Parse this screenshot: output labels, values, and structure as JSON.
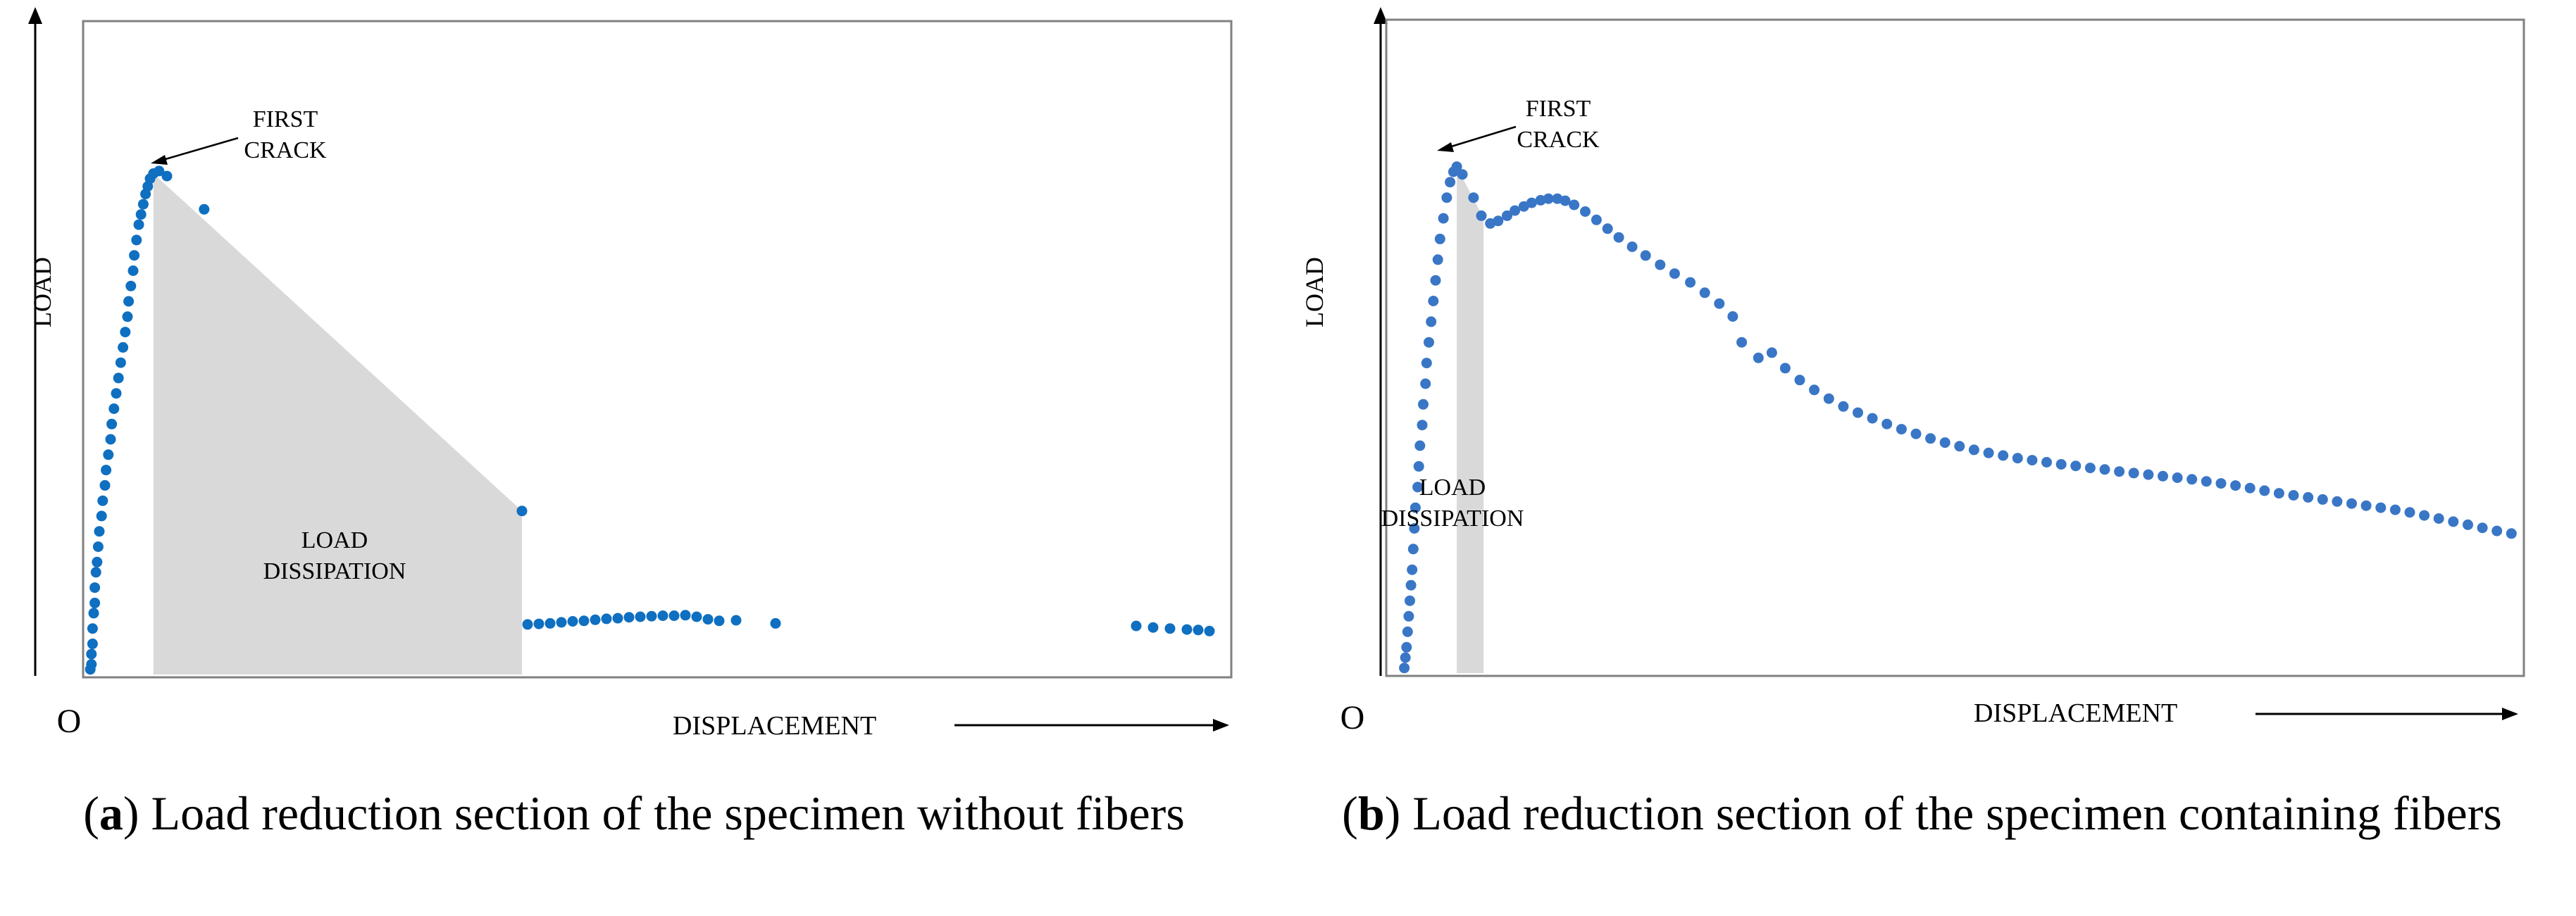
{
  "chart_data": [
    {
      "type": "scatter",
      "panel_label": "a",
      "caption": "Load reduction section of the specimen without fibers",
      "xlabel": "DISPLACEMENT",
      "ylabel": "LOAD",
      "origin_label": "O",
      "xlim": [
        0,
        100
      ],
      "ylim": [
        0,
        100
      ],
      "point_color": "#0f6fc0",
      "shade_color": "#d9d9d9",
      "annotations": {
        "first_crack": [
          "FIRST",
          "CRACK"
        ],
        "load_dissipation": [
          "LOAD",
          "DISSIPATION"
        ]
      },
      "shaded_region": [
        [
          5.8,
          0
        ],
        [
          5.8,
          98
        ],
        [
          38.5,
          32
        ],
        [
          38.5,
          0
        ]
      ],
      "points": [
        [
          0.2,
          1
        ],
        [
          0.3,
          2
        ],
        [
          0.3,
          4
        ],
        [
          0.4,
          6
        ],
        [
          0.4,
          9
        ],
        [
          0.5,
          12
        ],
        [
          0.6,
          14
        ],
        [
          0.6,
          17
        ],
        [
          0.7,
          20
        ],
        [
          0.8,
          22
        ],
        [
          0.9,
          25
        ],
        [
          1.0,
          28
        ],
        [
          1.2,
          31
        ],
        [
          1.3,
          34
        ],
        [
          1.5,
          37
        ],
        [
          1.6,
          40
        ],
        [
          1.8,
          43
        ],
        [
          2.0,
          46
        ],
        [
          2.1,
          49
        ],
        [
          2.3,
          52
        ],
        [
          2.5,
          55
        ],
        [
          2.7,
          58
        ],
        [
          2.9,
          61
        ],
        [
          3.1,
          64
        ],
        [
          3.3,
          67
        ],
        [
          3.5,
          70
        ],
        [
          3.6,
          73
        ],
        [
          3.8,
          76
        ],
        [
          4.0,
          79
        ],
        [
          4.1,
          82
        ],
        [
          4.3,
          85
        ],
        [
          4.5,
          88
        ],
        [
          4.7,
          90
        ],
        [
          4.9,
          92
        ],
        [
          5.1,
          94
        ],
        [
          5.3,
          95.5
        ],
        [
          5.5,
          97
        ],
        [
          5.8,
          98
        ],
        [
          6.3,
          98.5
        ],
        [
          7.0,
          97.5
        ],
        [
          10.3,
          91
        ],
        [
          38.5,
          32
        ],
        [
          39.0,
          9.8
        ],
        [
          40.0,
          9.9
        ],
        [
          41.0,
          10.0
        ],
        [
          42.0,
          10.2
        ],
        [
          43.0,
          10.4
        ],
        [
          44.0,
          10.5
        ],
        [
          45.0,
          10.7
        ],
        [
          46.0,
          10.9
        ],
        [
          47.0,
          11.0
        ],
        [
          48.0,
          11.2
        ],
        [
          49.0,
          11.3
        ],
        [
          50.0,
          11.4
        ],
        [
          51.0,
          11.5
        ],
        [
          52.0,
          11.5
        ],
        [
          53.0,
          11.6
        ],
        [
          54.0,
          11.3
        ],
        [
          55.0,
          10.8
        ],
        [
          56.0,
          10.5
        ],
        [
          57.5,
          10.6
        ],
        [
          61.0,
          10.0
        ],
        [
          93.0,
          9.5
        ],
        [
          94.5,
          9.2
        ],
        [
          96.0,
          9.0
        ],
        [
          97.5,
          8.8
        ],
        [
          98.5,
          8.7
        ],
        [
          99.5,
          8.5
        ]
      ]
    },
    {
      "type": "scatter",
      "panel_label": "b",
      "caption": "Load reduction section of the specimen containing fibers",
      "xlabel": "DISPLACEMENT",
      "ylabel": "LOAD",
      "origin_label": "O",
      "xlim": [
        0,
        100
      ],
      "ylim": [
        0,
        100
      ],
      "point_color": "#3a76c6",
      "shade_color": "#d9d9d9",
      "annotations": {
        "first_crack": [
          "FIRST",
          "CRACK"
        ],
        "load_dissipation": [
          "LOAD",
          "DISSIPATION"
        ]
      },
      "shaded_region": [
        [
          4.8,
          0
        ],
        [
          4.8,
          98
        ],
        [
          7.2,
          88
        ],
        [
          7.2,
          0
        ]
      ],
      "points": [
        [
          0.1,
          1
        ],
        [
          0.2,
          3
        ],
        [
          0.3,
          5
        ],
        [
          0.4,
          8
        ],
        [
          0.5,
          11
        ],
        [
          0.6,
          14
        ],
        [
          0.7,
          17
        ],
        [
          0.8,
          20
        ],
        [
          0.9,
          24
        ],
        [
          1.0,
          28
        ],
        [
          1.1,
          32
        ],
        [
          1.3,
          36
        ],
        [
          1.4,
          40
        ],
        [
          1.5,
          44
        ],
        [
          1.7,
          48
        ],
        [
          1.8,
          52
        ],
        [
          2.0,
          56
        ],
        [
          2.1,
          60
        ],
        [
          2.3,
          64
        ],
        [
          2.5,
          68
        ],
        [
          2.7,
          72
        ],
        [
          2.9,
          76
        ],
        [
          3.1,
          80
        ],
        [
          3.3,
          84
        ],
        [
          3.6,
          88
        ],
        [
          3.9,
          92
        ],
        [
          4.2,
          95
        ],
        [
          4.5,
          97
        ],
        [
          4.8,
          98
        ],
        [
          5.3,
          96.5
        ],
        [
          6.3,
          92
        ],
        [
          7.0,
          88.5
        ],
        [
          7.8,
          87
        ],
        [
          8.5,
          87.5
        ],
        [
          9.3,
          88.5
        ],
        [
          10.0,
          89.5
        ],
        [
          10.8,
          90.3
        ],
        [
          11.5,
          91.0
        ],
        [
          12.3,
          91.5
        ],
        [
          13.0,
          91.8
        ],
        [
          13.8,
          91.8
        ],
        [
          14.5,
          91.4
        ],
        [
          15.3,
          90.6
        ],
        [
          16.3,
          89.3
        ],
        [
          17.3,
          87.7
        ],
        [
          18.3,
          86.0
        ],
        [
          19.3,
          84.3
        ],
        [
          20.5,
          82.5
        ],
        [
          21.7,
          80.8
        ],
        [
          23.0,
          79.0
        ],
        [
          24.3,
          77.3
        ],
        [
          25.7,
          75.6
        ],
        [
          27.0,
          73.6
        ],
        [
          28.3,
          71.5
        ],
        [
          29.5,
          69.0
        ],
        [
          30.3,
          64.0
        ],
        [
          31.8,
          61.0
        ],
        [
          33.0,
          62.0
        ],
        [
          34.2,
          59.0
        ],
        [
          35.5,
          56.7
        ],
        [
          36.8,
          54.8
        ],
        [
          38.1,
          53.1
        ],
        [
          39.4,
          51.6
        ],
        [
          40.7,
          50.4
        ],
        [
          42.0,
          49.3
        ],
        [
          43.3,
          48.2
        ],
        [
          44.6,
          47.2
        ],
        [
          45.9,
          46.3
        ],
        [
          47.2,
          45.4
        ],
        [
          48.5,
          44.6
        ],
        [
          49.8,
          43.9
        ],
        [
          51.1,
          43.2
        ],
        [
          52.4,
          42.6
        ],
        [
          53.7,
          42.1
        ],
        [
          55.0,
          41.6
        ],
        [
          56.3,
          41.2
        ],
        [
          57.6,
          40.8
        ],
        [
          58.9,
          40.4
        ],
        [
          60.2,
          40.1
        ],
        [
          61.5,
          39.7
        ],
        [
          62.8,
          39.4
        ],
        [
          64.1,
          39.0
        ],
        [
          65.4,
          38.7
        ],
        [
          66.7,
          38.4
        ],
        [
          68.0,
          38.1
        ],
        [
          69.3,
          37.8
        ],
        [
          70.6,
          37.5
        ],
        [
          71.9,
          37.1
        ],
        [
          73.2,
          36.7
        ],
        [
          74.5,
          36.3
        ],
        [
          75.8,
          35.8
        ],
        [
          77.1,
          35.3
        ],
        [
          78.4,
          34.8
        ],
        [
          79.7,
          34.4
        ],
        [
          81.0,
          34.0
        ],
        [
          82.3,
          33.6
        ],
        [
          83.6,
          33.2
        ],
        [
          84.9,
          32.8
        ],
        [
          86.2,
          32.4
        ],
        [
          87.5,
          32.0
        ],
        [
          88.8,
          31.6
        ],
        [
          90.1,
          31.1
        ],
        [
          91.4,
          30.5
        ],
        [
          92.7,
          29.9
        ],
        [
          94.0,
          29.3
        ],
        [
          95.3,
          28.7
        ],
        [
          96.6,
          28.1
        ],
        [
          97.9,
          27.5
        ],
        [
          99.2,
          27.0
        ]
      ]
    }
  ]
}
